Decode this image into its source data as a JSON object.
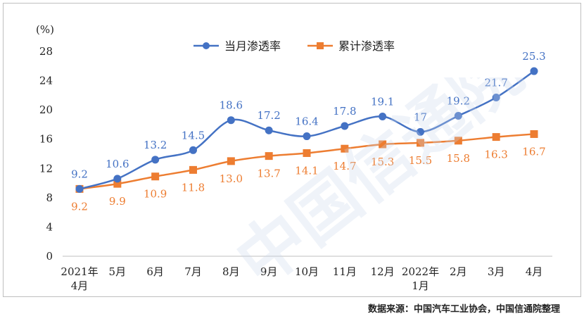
{
  "chart_data": {
    "type": "line",
    "ylabel": "(%)",
    "ylim": [
      0,
      28
    ],
    "yticks": [
      0,
      4,
      8,
      12,
      16,
      20,
      24,
      28
    ],
    "categories": [
      [
        "2021年",
        "4月"
      ],
      [
        "5月"
      ],
      [
        "6月"
      ],
      [
        "7月"
      ],
      [
        "8月"
      ],
      [
        "9月"
      ],
      [
        "10月"
      ],
      [
        "11月"
      ],
      [
        "12月"
      ],
      [
        "2022年",
        "1月"
      ],
      [
        "2月"
      ],
      [
        "3月"
      ],
      [
        "4月"
      ]
    ],
    "series": [
      {
        "name": "当月渗透率",
        "color": "#4472c4",
        "marker": "circle",
        "values": [
          9.2,
          10.6,
          13.2,
          14.5,
          18.6,
          17.2,
          16.4,
          17.8,
          19.1,
          17,
          19.2,
          21.7,
          25.3
        ],
        "labels": [
          "9.2",
          "10.6",
          "13.2",
          "14.5",
          "18.6",
          "17.2",
          "16.4",
          "17.8",
          "19.1",
          "17",
          "19.2",
          "21.7",
          "25.3"
        ]
      },
      {
        "name": "累计渗透率",
        "color": "#ed7d31",
        "marker": "square",
        "values": [
          9.2,
          9.9,
          10.9,
          11.8,
          13.0,
          13.7,
          14.1,
          14.7,
          15.3,
          15.5,
          15.8,
          16.3,
          16.7
        ],
        "labels": [
          "9.2",
          "9.9",
          "10.9",
          "11.8",
          "13.0",
          "13.7",
          "14.1",
          "14.7",
          "15.3",
          "15.5",
          "15.8",
          "16.3",
          "16.7"
        ]
      }
    ],
    "legend": "top-center"
  },
  "source": "数据来源：中国汽车工业协会，中国信通院整理",
  "watermark": "中国信通院"
}
